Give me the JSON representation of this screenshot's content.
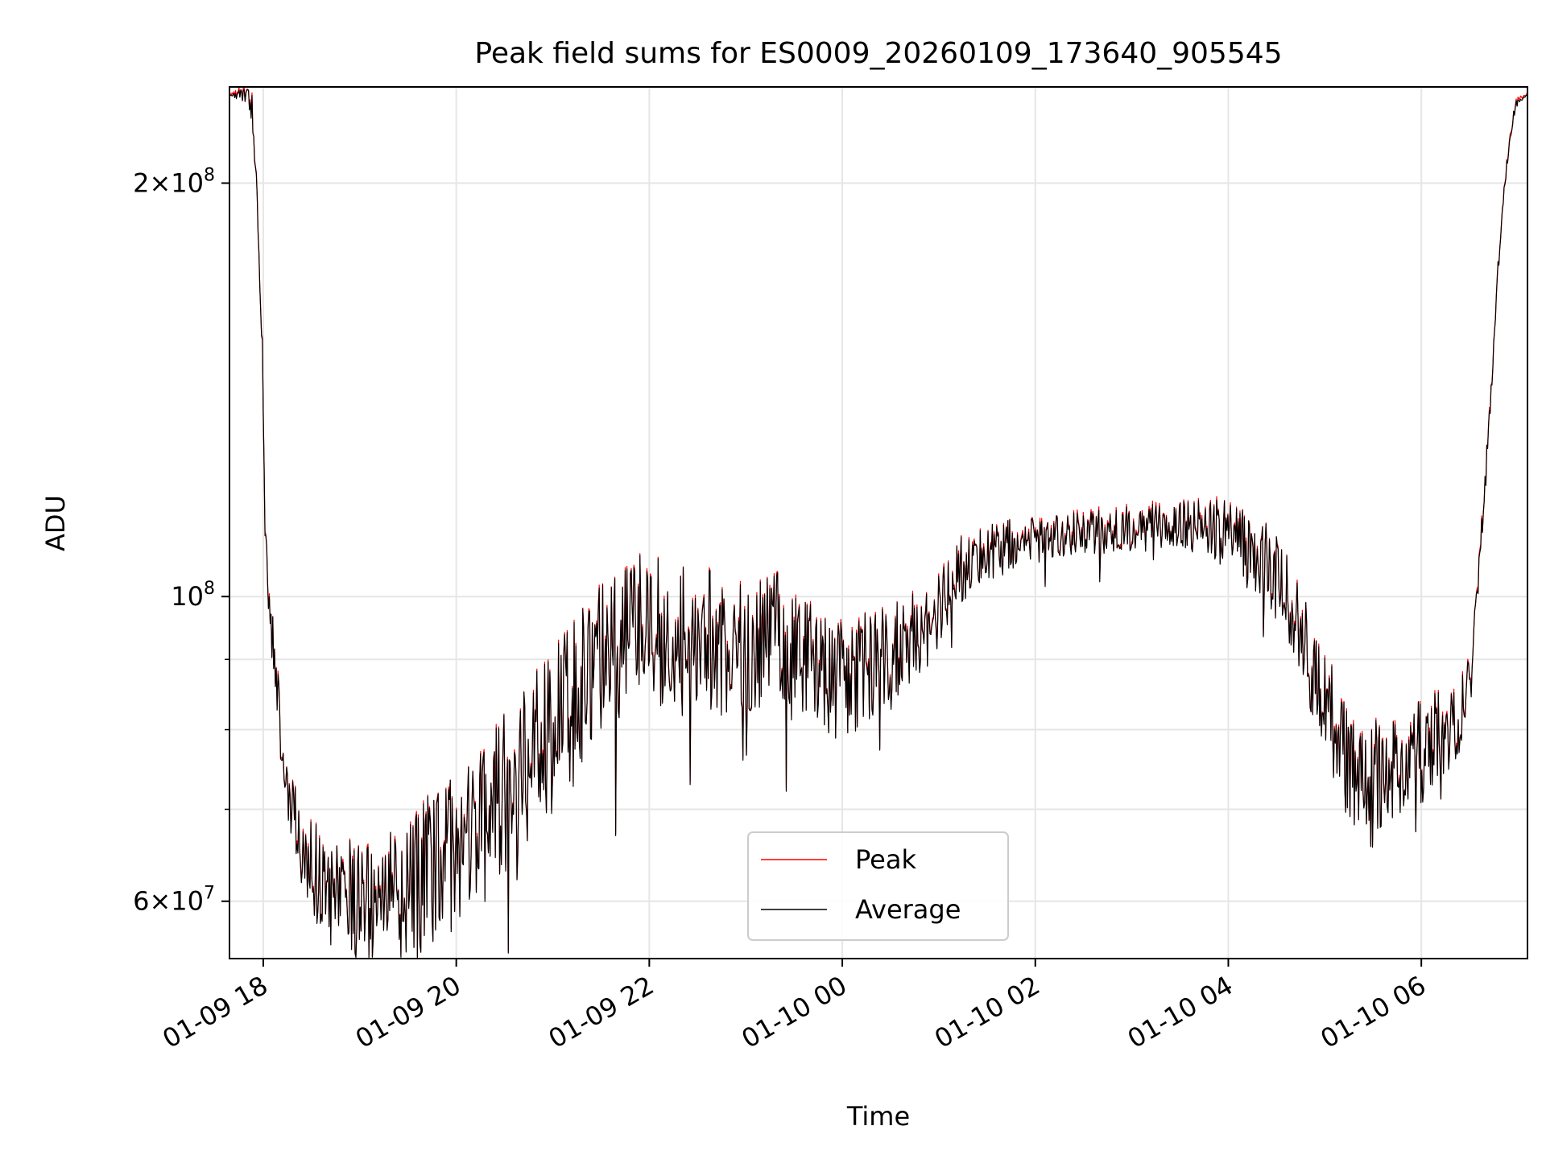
{
  "chart_data": {
    "type": "line",
    "title": "Peak field sums for ES0009_20260109_173640_905545",
    "xlabel": "Time",
    "ylabel": "ADU",
    "yscale": "log",
    "xlim_hours": [
      -0.35,
      13.1
    ],
    "ylim": [
      54500000,
      235000000
    ],
    "x_time_origin": "2026-01-09 18:00",
    "xticks": [
      {
        "label": "01-09 18",
        "hours": 0
      },
      {
        "label": "01-09 20",
        "hours": 2
      },
      {
        "label": "01-09 22",
        "hours": 4
      },
      {
        "label": "01-10 00",
        "hours": 6
      },
      {
        "label": "01-10 02",
        "hours": 8
      },
      {
        "label": "01-10 04",
        "hours": 10
      },
      {
        "label": "01-10 06",
        "hours": 12
      }
    ],
    "yticks_major": [
      {
        "value": 60000000,
        "base": "6",
        "exp": "7"
      },
      {
        "value": 100000000,
        "base": "",
        "exp": "8"
      },
      {
        "value": 200000000,
        "base": "2",
        "exp": "8"
      }
    ],
    "yticks_minor": [
      70000000,
      80000000,
      90000000
    ],
    "times_symbol": "×",
    "base_ten": "10",
    "grid": true,
    "legend_position": "lower-center",
    "series": [
      {
        "name": "Peak",
        "color": "#ff0000"
      },
      {
        "name": "Average",
        "color": "#000000"
      }
    ],
    "trend_points": [
      [
        -0.35,
        232000000
      ],
      [
        -0.18,
        232000000
      ],
      [
        -0.12,
        228000000
      ],
      [
        -0.08,
        205000000
      ],
      [
        -0.03,
        170000000
      ],
      [
        0.0,
        140000000
      ],
      [
        0.02,
        112000000
      ],
      [
        0.05,
        100000000
      ],
      [
        0.1,
        92000000
      ],
      [
        0.15,
        85000000
      ],
      [
        0.2,
        77000000
      ],
      [
        0.3,
        70000000
      ],
      [
        0.45,
        64000000
      ],
      [
        0.7,
        61000000
      ],
      [
        1.0,
        60000000
      ],
      [
        1.4,
        60000000
      ],
      [
        1.7,
        63000000
      ],
      [
        2.0,
        65000000
      ],
      [
        2.3,
        68000000
      ],
      [
        2.6,
        74000000
      ],
      [
        3.0,
        80000000
      ],
      [
        3.4,
        87000000
      ],
      [
        3.7,
        93000000
      ],
      [
        4.0,
        95000000
      ],
      [
        4.5,
        93000000
      ],
      [
        5.0,
        91000000
      ],
      [
        5.3,
        94000000
      ],
      [
        5.5,
        92000000
      ],
      [
        5.8,
        88000000
      ],
      [
        6.0,
        87000000
      ],
      [
        6.4,
        90000000
      ],
      [
        6.8,
        94000000
      ],
      [
        7.0,
        97000000
      ],
      [
        7.2,
        104000000
      ],
      [
        7.5,
        108000000
      ],
      [
        8.0,
        110000000
      ],
      [
        8.5,
        111000000
      ],
      [
        9.0,
        112000000
      ],
      [
        9.5,
        113000000
      ],
      [
        10.0,
        111000000
      ],
      [
        10.3,
        108000000
      ],
      [
        10.6,
        100000000
      ],
      [
        10.9,
        88000000
      ],
      [
        11.2,
        77000000
      ],
      [
        11.45,
        72000000
      ],
      [
        11.7,
        76000000
      ],
      [
        12.0,
        77000000
      ],
      [
        12.2,
        79000000
      ],
      [
        12.4,
        82000000
      ],
      [
        12.52,
        88000000
      ],
      [
        12.58,
        100000000
      ],
      [
        12.65,
        118000000
      ],
      [
        12.72,
        140000000
      ],
      [
        12.8,
        175000000
      ],
      [
        12.88,
        205000000
      ],
      [
        12.97,
        228000000
      ],
      [
        13.1,
        232000000
      ]
    ],
    "noise_amplitude": [
      [
        -0.35,
        0.0
      ],
      [
        0.0,
        0.03
      ],
      [
        0.3,
        0.05
      ],
      [
        1.0,
        0.09
      ],
      [
        3.0,
        0.11
      ],
      [
        4.0,
        0.1
      ],
      [
        6.0,
        0.08
      ],
      [
        7.0,
        0.05
      ],
      [
        8.0,
        0.03
      ],
      [
        9.5,
        0.03
      ],
      [
        10.5,
        0.06
      ],
      [
        11.5,
        0.08
      ],
      [
        12.3,
        0.06
      ],
      [
        12.6,
        0.02
      ],
      [
        13.1,
        0.0
      ]
    ],
    "noise_seed": 9
  }
}
